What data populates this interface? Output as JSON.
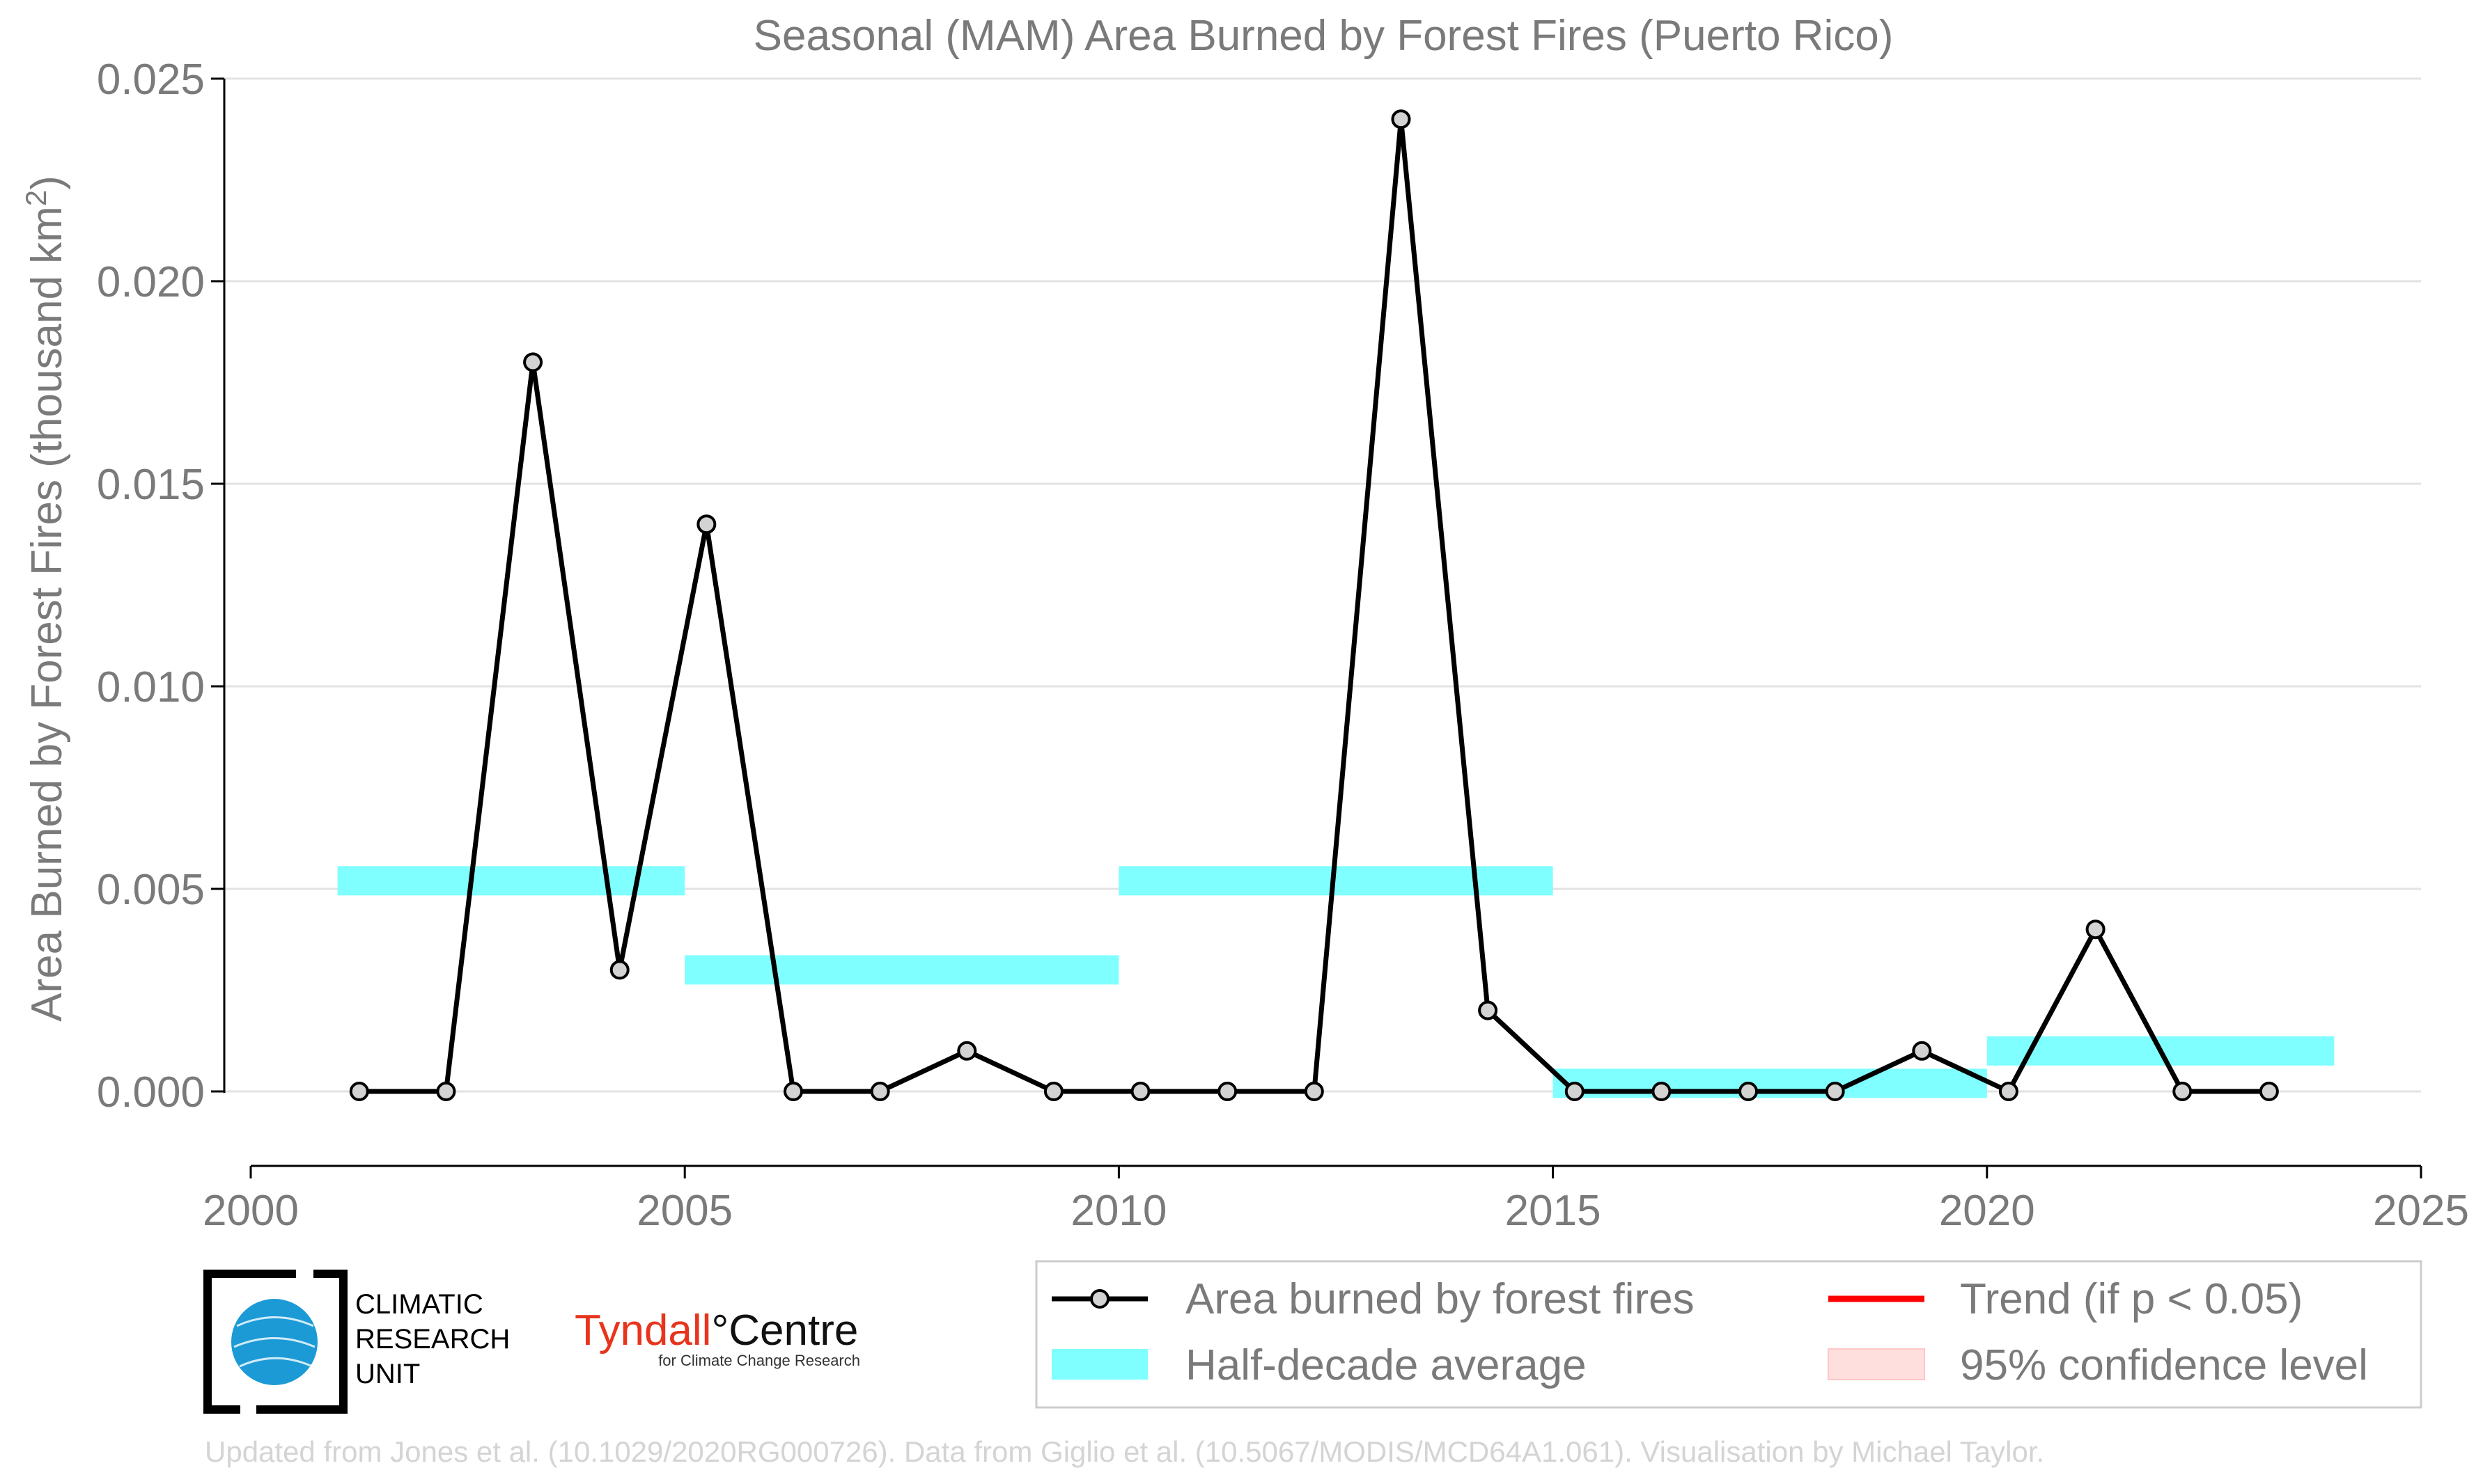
{
  "chart_data": {
    "type": "line",
    "title": "Seasonal (MAM) Area Burned by Forest Fires (Puerto Rico)",
    "xlabel": "",
    "ylabel_main": "Area Burned by Forest Fires (thousand km",
    "ylabel_sup": "2",
    "ylabel_close": ")",
    "xlim": [
      2000,
      2025
    ],
    "ylim": [
      -0.0018,
      0.025
    ],
    "x_ticks": [
      "2000",
      "2005",
      "2010",
      "2015",
      "2020",
      "2025"
    ],
    "x_tick_values": [
      2000,
      2005,
      2010,
      2015,
      2020,
      2025
    ],
    "y_ticks": [
      "0.000",
      "0.005",
      "0.010",
      "0.015",
      "0.020",
      "0.025"
    ],
    "y_tick_values": [
      0,
      0.005,
      0.01,
      0.015,
      0.02,
      0.025
    ],
    "grid": "horizontal",
    "series": [
      {
        "name": "Area burned by forest fires",
        "color": "#000000",
        "marker_fill": "#d3d3d3",
        "x": [
          2001.25,
          2002.25,
          2003.25,
          2004.25,
          2005.25,
          2006.25,
          2007.25,
          2008.25,
          2009.25,
          2010.25,
          2011.25,
          2012.25,
          2013.25,
          2014.25,
          2015.25,
          2016.25,
          2017.25,
          2018.25,
          2019.25,
          2020.25,
          2021.25,
          2022.25,
          2023.25
        ],
        "values": [
          0,
          0,
          0.018,
          0.003,
          0.014,
          0,
          0,
          0.001,
          0,
          0,
          0,
          0,
          0.024,
          0.002,
          0,
          0,
          0,
          0,
          0.001,
          0,
          0.004,
          0,
          0
        ]
      }
    ],
    "half_decade_average": {
      "name": "Half-decade average",
      "color": "#7fffff",
      "segments": [
        {
          "x0": 2001,
          "x1": 2005,
          "value": 0.0052
        },
        {
          "x0": 2005,
          "x1": 2010,
          "value": 0.003
        },
        {
          "x0": 2010,
          "x1": 2015,
          "value": 0.0052
        },
        {
          "x0": 2015,
          "x1": 2020,
          "value": 0.0002
        },
        {
          "x0": 2020,
          "x1": 2024,
          "value": 0.001
        }
      ]
    },
    "legend": {
      "placement": "bottom-right",
      "items": [
        {
          "label": "Area burned by forest fires",
          "kind": "line-marker",
          "color": "#000000"
        },
        {
          "label": "Trend (if p < 0.05)",
          "kind": "line",
          "color": "#ff0000"
        },
        {
          "label": "Half-decade average",
          "kind": "band",
          "color": "#7fffff"
        },
        {
          "label": "95% confidence level",
          "kind": "band",
          "color": "#ffdede"
        }
      ]
    }
  },
  "logos": {
    "cru_lines": [
      "CLIMATIC",
      "RESEARCH",
      "UNIT"
    ],
    "tyndall_left": "Tyndall",
    "tyndall_right": "°Centre",
    "tyndall_sub": "for Climate Change Research",
    "tyndall_color": "#e8341c"
  },
  "credit": "Updated from Jones et al. (10.1029/2020RG000726). Data from Giglio et al. (10.5067/MODIS/MCD64A1.061). Visualisation by Michael Taylor."
}
